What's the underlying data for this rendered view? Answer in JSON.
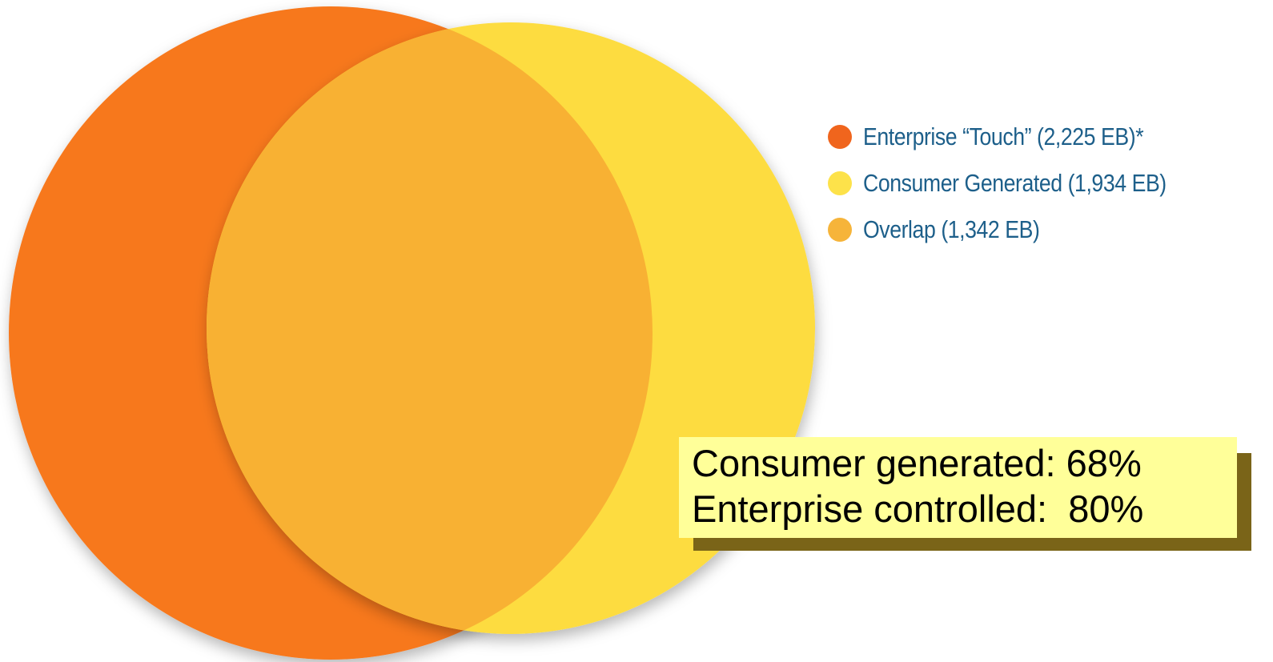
{
  "diagram": {
    "type": "venn",
    "sets": [
      {
        "key": "enterprise",
        "color": "#f7781d"
      },
      {
        "key": "consumer",
        "color": "#fddc3f"
      },
      {
        "key": "overlap",
        "color": "#f8b133"
      }
    ]
  },
  "legend": {
    "items": [
      {
        "label": "Enterprise “Touch” (2,225 EB)*",
        "color": "#f0651d"
      },
      {
        "label": "Consumer Generated (1,934 EB)",
        "color": "#fde24a"
      },
      {
        "label": "Overlap (1,342 EB)",
        "color": "#f6b43a"
      }
    ]
  },
  "note": {
    "line1": "Consumer generated: 68%",
    "line2": "Enterprise controlled:  80%",
    "background": "#ffff99",
    "shadow": "#7a6418"
  }
}
